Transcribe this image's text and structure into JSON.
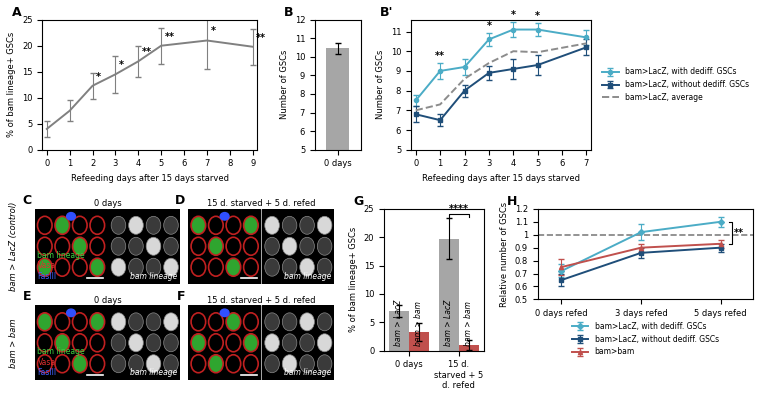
{
  "chart_data": [
    {
      "panel": "A",
      "type": "line",
      "x": [
        0,
        1,
        2,
        3,
        4,
        5,
        7,
        9
      ],
      "xlabel": "Refeeding days after 15 days starved",
      "ylabel": "% of bam lineage+ GSCs",
      "xlim": [
        -0.2,
        9.2
      ],
      "xticks": [
        0,
        1,
        2,
        3,
        4,
        5,
        6,
        7,
        8,
        9
      ],
      "ylim": [
        0,
        25
      ],
      "yticks": [
        0,
        5,
        10,
        15,
        20,
        25
      ],
      "series": [
        {
          "color": "#808080",
          "line_style": "solid",
          "marker": "none",
          "values": [
            4,
            7.5,
            12.3,
            14.5,
            17,
            20,
            21,
            19.8
          ],
          "errors": [
            1.5,
            2,
            2.5,
            3.5,
            3,
            3.5,
            5.5,
            3.5
          ]
        }
      ],
      "annotations": [
        {
          "x": 2,
          "text": "*"
        },
        {
          "x": 3,
          "text": "*"
        },
        {
          "x": 4,
          "text": "**"
        },
        {
          "x": 5,
          "text": "**"
        },
        {
          "x": 7,
          "text": "*"
        },
        {
          "x": 9,
          "text": "**"
        }
      ]
    },
    {
      "panel": "B",
      "type": "bar",
      "categories": [
        "0 days"
      ],
      "ylabel": "Number of GSCs",
      "values": [
        10.45
      ],
      "errors": [
        0.3
      ],
      "color": "#a6a6a6",
      "ylim": [
        5,
        12
      ],
      "yticks": [
        5,
        6,
        7,
        8,
        9,
        10,
        11,
        12
      ]
    },
    {
      "panel": "B'",
      "type": "line",
      "x": [
        0,
        1,
        2,
        3,
        4,
        5,
        7
      ],
      "xlabel": "Refeeding days after 15 days starved",
      "ylabel": "Number of GSCs",
      "xlim": [
        -0.2,
        7.2
      ],
      "xticks": [
        0,
        1,
        2,
        3,
        4,
        5,
        6,
        7
      ],
      "ylim": [
        5,
        11.6
      ],
      "yticks": [
        5,
        6,
        7,
        8,
        9,
        10,
        11
      ],
      "legend": "right",
      "series": [
        {
          "name": "bam>LacZ, with dediff. GSCs",
          "color": "#4bacc6",
          "line_style": "solid",
          "marker": "circle",
          "values": [
            7.5,
            9.0,
            9.2,
            10.6,
            11.1,
            11.1,
            10.7
          ],
          "errors": [
            0.3,
            0.4,
            0.4,
            0.35,
            0.4,
            0.35,
            0.4
          ]
        },
        {
          "name": "bam>LacZ, without dediff. GSCs",
          "color": "#1f4e79",
          "line_style": "solid",
          "marker": "square",
          "values": [
            6.8,
            6.5,
            8.0,
            8.9,
            9.1,
            9.3,
            10.2
          ],
          "errors": [
            0.4,
            0.3,
            0.3,
            0.35,
            0.5,
            0.5,
            0.4
          ]
        },
        {
          "name": "bam>LacZ, average",
          "color": "#8c8c8c",
          "line_style": "dashed",
          "marker": "none",
          "values": [
            7.0,
            7.3,
            8.6,
            9.4,
            10.0,
            9.95,
            10.4
          ]
        }
      ],
      "annotations": [
        {
          "x": 1,
          "text": "**"
        },
        {
          "x": 3,
          "text": "*"
        },
        {
          "x": 4,
          "text": "*"
        },
        {
          "x": 5,
          "text": "*"
        }
      ]
    },
    {
      "panel": "G",
      "type": "bar",
      "categories": [
        "0 days",
        "15 d. starved + 5 d. refed"
      ],
      "ylabel": "% of bam lineage+ GSCs",
      "ylim": [
        0,
        25
      ],
      "yticks": [
        0,
        5,
        10,
        15,
        20,
        25
      ],
      "series": [
        {
          "name": "bam > LacZ",
          "color": "#a6a6a6",
          "values": [
            7,
            19.7
          ],
          "errors": [
            1.1,
            3.6
          ]
        },
        {
          "name": "bam > bam",
          "color": "#c0504d",
          "values": [
            3.3,
            1.0
          ],
          "errors": [
            1.6,
            0.8
          ]
        }
      ],
      "significance": {
        "category": 1,
        "text": "****"
      }
    },
    {
      "panel": "H",
      "type": "line",
      "categories": [
        "0 days refed",
        "3 days refed",
        "5 days refed"
      ],
      "ylabel": "Relative number of GSCs",
      "ylim": [
        0.5,
        1.2
      ],
      "yticks": [
        0.5,
        0.6,
        0.7,
        0.8,
        0.9,
        1,
        1.1,
        1.2
      ],
      "reference_line": 1,
      "legend": "below",
      "series": [
        {
          "name": "bam>LacZ, with dediff. GSCs",
          "color": "#4bacc6",
          "line_style": "solid",
          "marker": "diamond",
          "values": [
            0.72,
            1.02,
            1.1
          ],
          "errors": [
            0.05,
            0.06,
            0.04
          ]
        },
        {
          "name": "bam>LacZ, without dediff. GSCs",
          "color": "#1f4e79",
          "line_style": "solid",
          "marker": "square",
          "values": [
            0.65,
            0.86,
            0.9
          ],
          "errors": [
            0.05,
            0.04,
            0.03
          ]
        },
        {
          "name": "bam>bam",
          "color": "#c0504d",
          "line_style": "solid",
          "marker": "triangle",
          "values": [
            0.75,
            0.9,
            0.93
          ],
          "errors": [
            0.06,
            0.03,
            0.03
          ]
        }
      ],
      "significance": {
        "category": 2,
        "series": [
          0,
          2
        ],
        "text": "**"
      }
    }
  ],
  "image_rows": [
    {
      "label": "bam > LacZ (control)",
      "panels": [
        {
          "panel": "C",
          "title": "0 days",
          "gray_label": "bam lineage",
          "channels": [
            {
              "name": "bam lineage",
              "color": "#3fd13f"
            },
            {
              "name": "Vasa",
              "color": "#e03030"
            },
            {
              "name": "FasIII",
              "color": "#4060ff"
            }
          ]
        },
        {
          "panel": "D",
          "title": "15 d. starved + 5 d. refed",
          "gray_label": "bam lineage",
          "channels": []
        }
      ]
    },
    {
      "label": "bam > bam",
      "panels": [
        {
          "panel": "E",
          "title": "0 days",
          "gray_label": "bam lineage",
          "channels": [
            {
              "name": "bam lineage",
              "color": "#3fd13f"
            },
            {
              "name": "Vasa",
              "color": "#e03030"
            },
            {
              "name": "FasIII",
              "color": "#4060ff"
            }
          ]
        },
        {
          "panel": "F",
          "title": "15 d. starved + 5 d. refed",
          "gray_label": "bam lineage",
          "channels": []
        }
      ]
    }
  ]
}
